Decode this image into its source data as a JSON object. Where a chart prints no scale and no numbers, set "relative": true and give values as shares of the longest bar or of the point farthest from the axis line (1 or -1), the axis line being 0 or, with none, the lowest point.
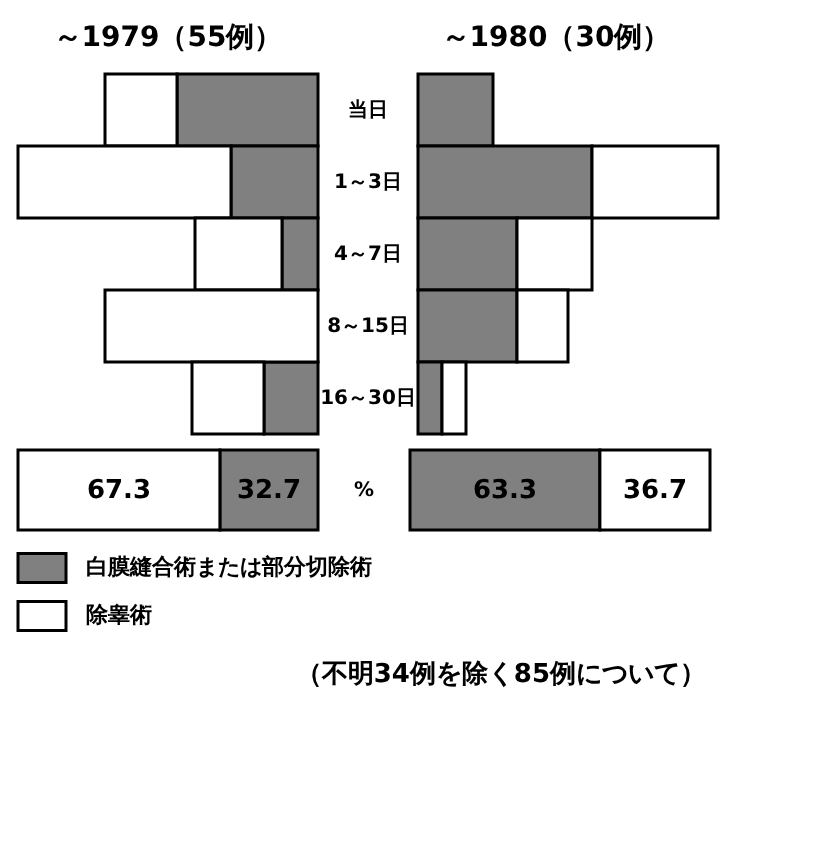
{
  "chart_data": [
    {
      "type": "bar",
      "orientation": "horizontal",
      "stacked": true,
      "relative": true,
      "legend": "bottom",
      "title": "～1979（55例）",
      "categories": [
        "当日",
        "1～3日",
        "4～7日",
        "8～15日",
        "16～30日"
      ],
      "series": [
        {
          "name": "白膜縫合術または部分切除術",
          "color": "#808080",
          "values": [
            0.47,
            0.29,
            0.12,
            0,
            0.18
          ]
        },
        {
          "name": "除睾術",
          "color": "#ffffff",
          "values": [
            0.24,
            0.71,
            0.29,
            0.71,
            0.24
          ]
        }
      ]
    },
    {
      "type": "bar",
      "orientation": "horizontal",
      "stacked": true,
      "relative": true,
      "title": "～1980（30例）",
      "categories": [
        null,
        null,
        null,
        null,
        null
      ],
      "series": [
        {
          "color": "#808080",
          "values": [
            0.25,
            0.58,
            0.33,
            0.33,
            0.08
          ]
        },
        {
          "color": "#ffffff",
          "values": [
            0,
            0.42,
            0.25,
            0.17,
            0.08
          ]
        }
      ]
    },
    {
      "type": "bar",
      "orientation": "horizontal",
      "stacked": true,
      "data_labels": true,
      "categories": [
        "%"
      ],
      "series": [
        {
          "color": "#808080",
          "values": [
            32.7
          ]
        },
        {
          "color": "#ffffff",
          "values": [
            67.3
          ]
        }
      ]
    },
    {
      "type": "bar",
      "orientation": "horizontal",
      "stacked": true,
      "data_labels": true,
      "categories": [
        null
      ],
      "annotations": [
        "（不明34例を除く85例について）"
      ],
      "series": [
        {
          "color": "#808080",
          "values": [
            63.3
          ]
        },
        {
          "color": "#ffffff",
          "values": [
            36.7
          ]
        }
      ]
    }
  ]
}
